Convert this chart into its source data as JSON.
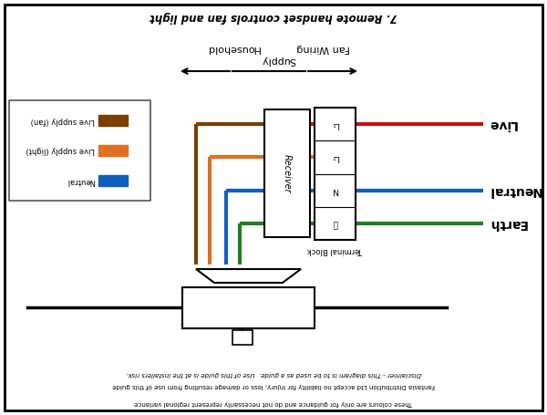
{
  "title": "7. Remote handset controls fan and light",
  "supply_label_left": "Household",
  "supply_label_right": "Fan Wiring",
  "supply_label_bottom": "Supply",
  "bg_color": "#ffffff",
  "wire_colors": {
    "live_fan": "#7B3F00",
    "live_light": "#E07020",
    "neutral": "#1060C0",
    "earth": "#208020",
    "live_out": "#CC1010",
    "neutral_out": "#1060C0",
    "earth_out": "#208020"
  },
  "legend_entries": [
    {
      "label": "Live supply (fan)",
      "color": "#7B3F00"
    },
    {
      "label": "Live supply (light)",
      "color": "#E07020"
    },
    {
      "label": "Neutral",
      "color": "#1060C0"
    }
  ],
  "right_labels": [
    "Live",
    "Neutral",
    "Earth"
  ],
  "terminal_label": "Terminal Block",
  "receiver_label": "Receiver",
  "disclaimer_lines": [
    "Disclaimer - This diagram is to be used as a guide.  Use of this guide is at the installers risk.",
    "Fantasia Distribution Ltd accept no liability for injury, loss or damage resulting from use of this guide",
    "These colours are only for guidance and do not necessarily represent regional variance"
  ]
}
